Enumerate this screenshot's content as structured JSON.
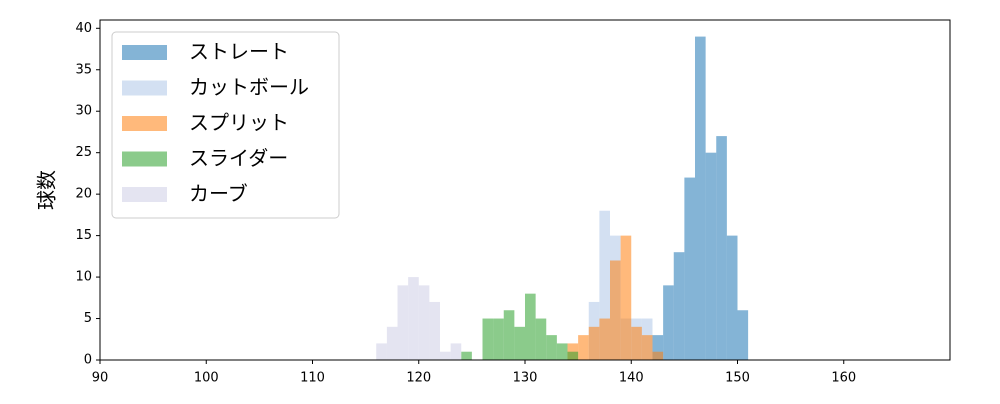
{
  "chart_data": {
    "type": "histogram",
    "ylabel": "球数",
    "xlim": [
      90,
      170
    ],
    "ylim": [
      0,
      41
    ],
    "xticks": [
      90,
      100,
      110,
      120,
      130,
      140,
      150,
      160
    ],
    "yticks": [
      0,
      5,
      10,
      15,
      20,
      25,
      30,
      35,
      40
    ],
    "legend": "upper left",
    "alpha": 0.55,
    "series": [
      {
        "name": "ストレート",
        "color": "#1f77b4",
        "bins": [
          142,
          143,
          144,
          145,
          146,
          147,
          148,
          149,
          150,
          151
        ],
        "values": [
          3,
          9,
          13,
          22,
          39,
          25,
          27,
          15,
          6
        ]
      },
      {
        "name": "カットボール",
        "color": "#aec7e8",
        "bins": [
          136,
          137,
          138,
          139,
          140,
          141,
          142
        ],
        "values": [
          7,
          18,
          15,
          5,
          5,
          5
        ]
      },
      {
        "name": "スプリット",
        "color": "#ff7f0e",
        "bins": [
          134,
          135,
          136,
          137,
          138,
          139,
          140,
          141,
          142,
          143
        ],
        "values": [
          2,
          3,
          4,
          5,
          12,
          15,
          4,
          3,
          1
        ]
      },
      {
        "name": "スライダー",
        "color": "#2ca02c",
        "bins": [
          124,
          125,
          126,
          127,
          128,
          129,
          130,
          131,
          132,
          133,
          134,
          135
        ],
        "values": [
          1,
          0,
          5,
          5,
          6,
          4,
          8,
          5,
          3,
          2,
          1
        ]
      },
      {
        "name": "カーブ",
        "color": "#cdcde5",
        "bins": [
          116,
          117,
          118,
          119,
          120,
          121,
          122,
          123,
          124
        ],
        "values": [
          2,
          4,
          9,
          10,
          9,
          7,
          1,
          2
        ]
      }
    ]
  }
}
